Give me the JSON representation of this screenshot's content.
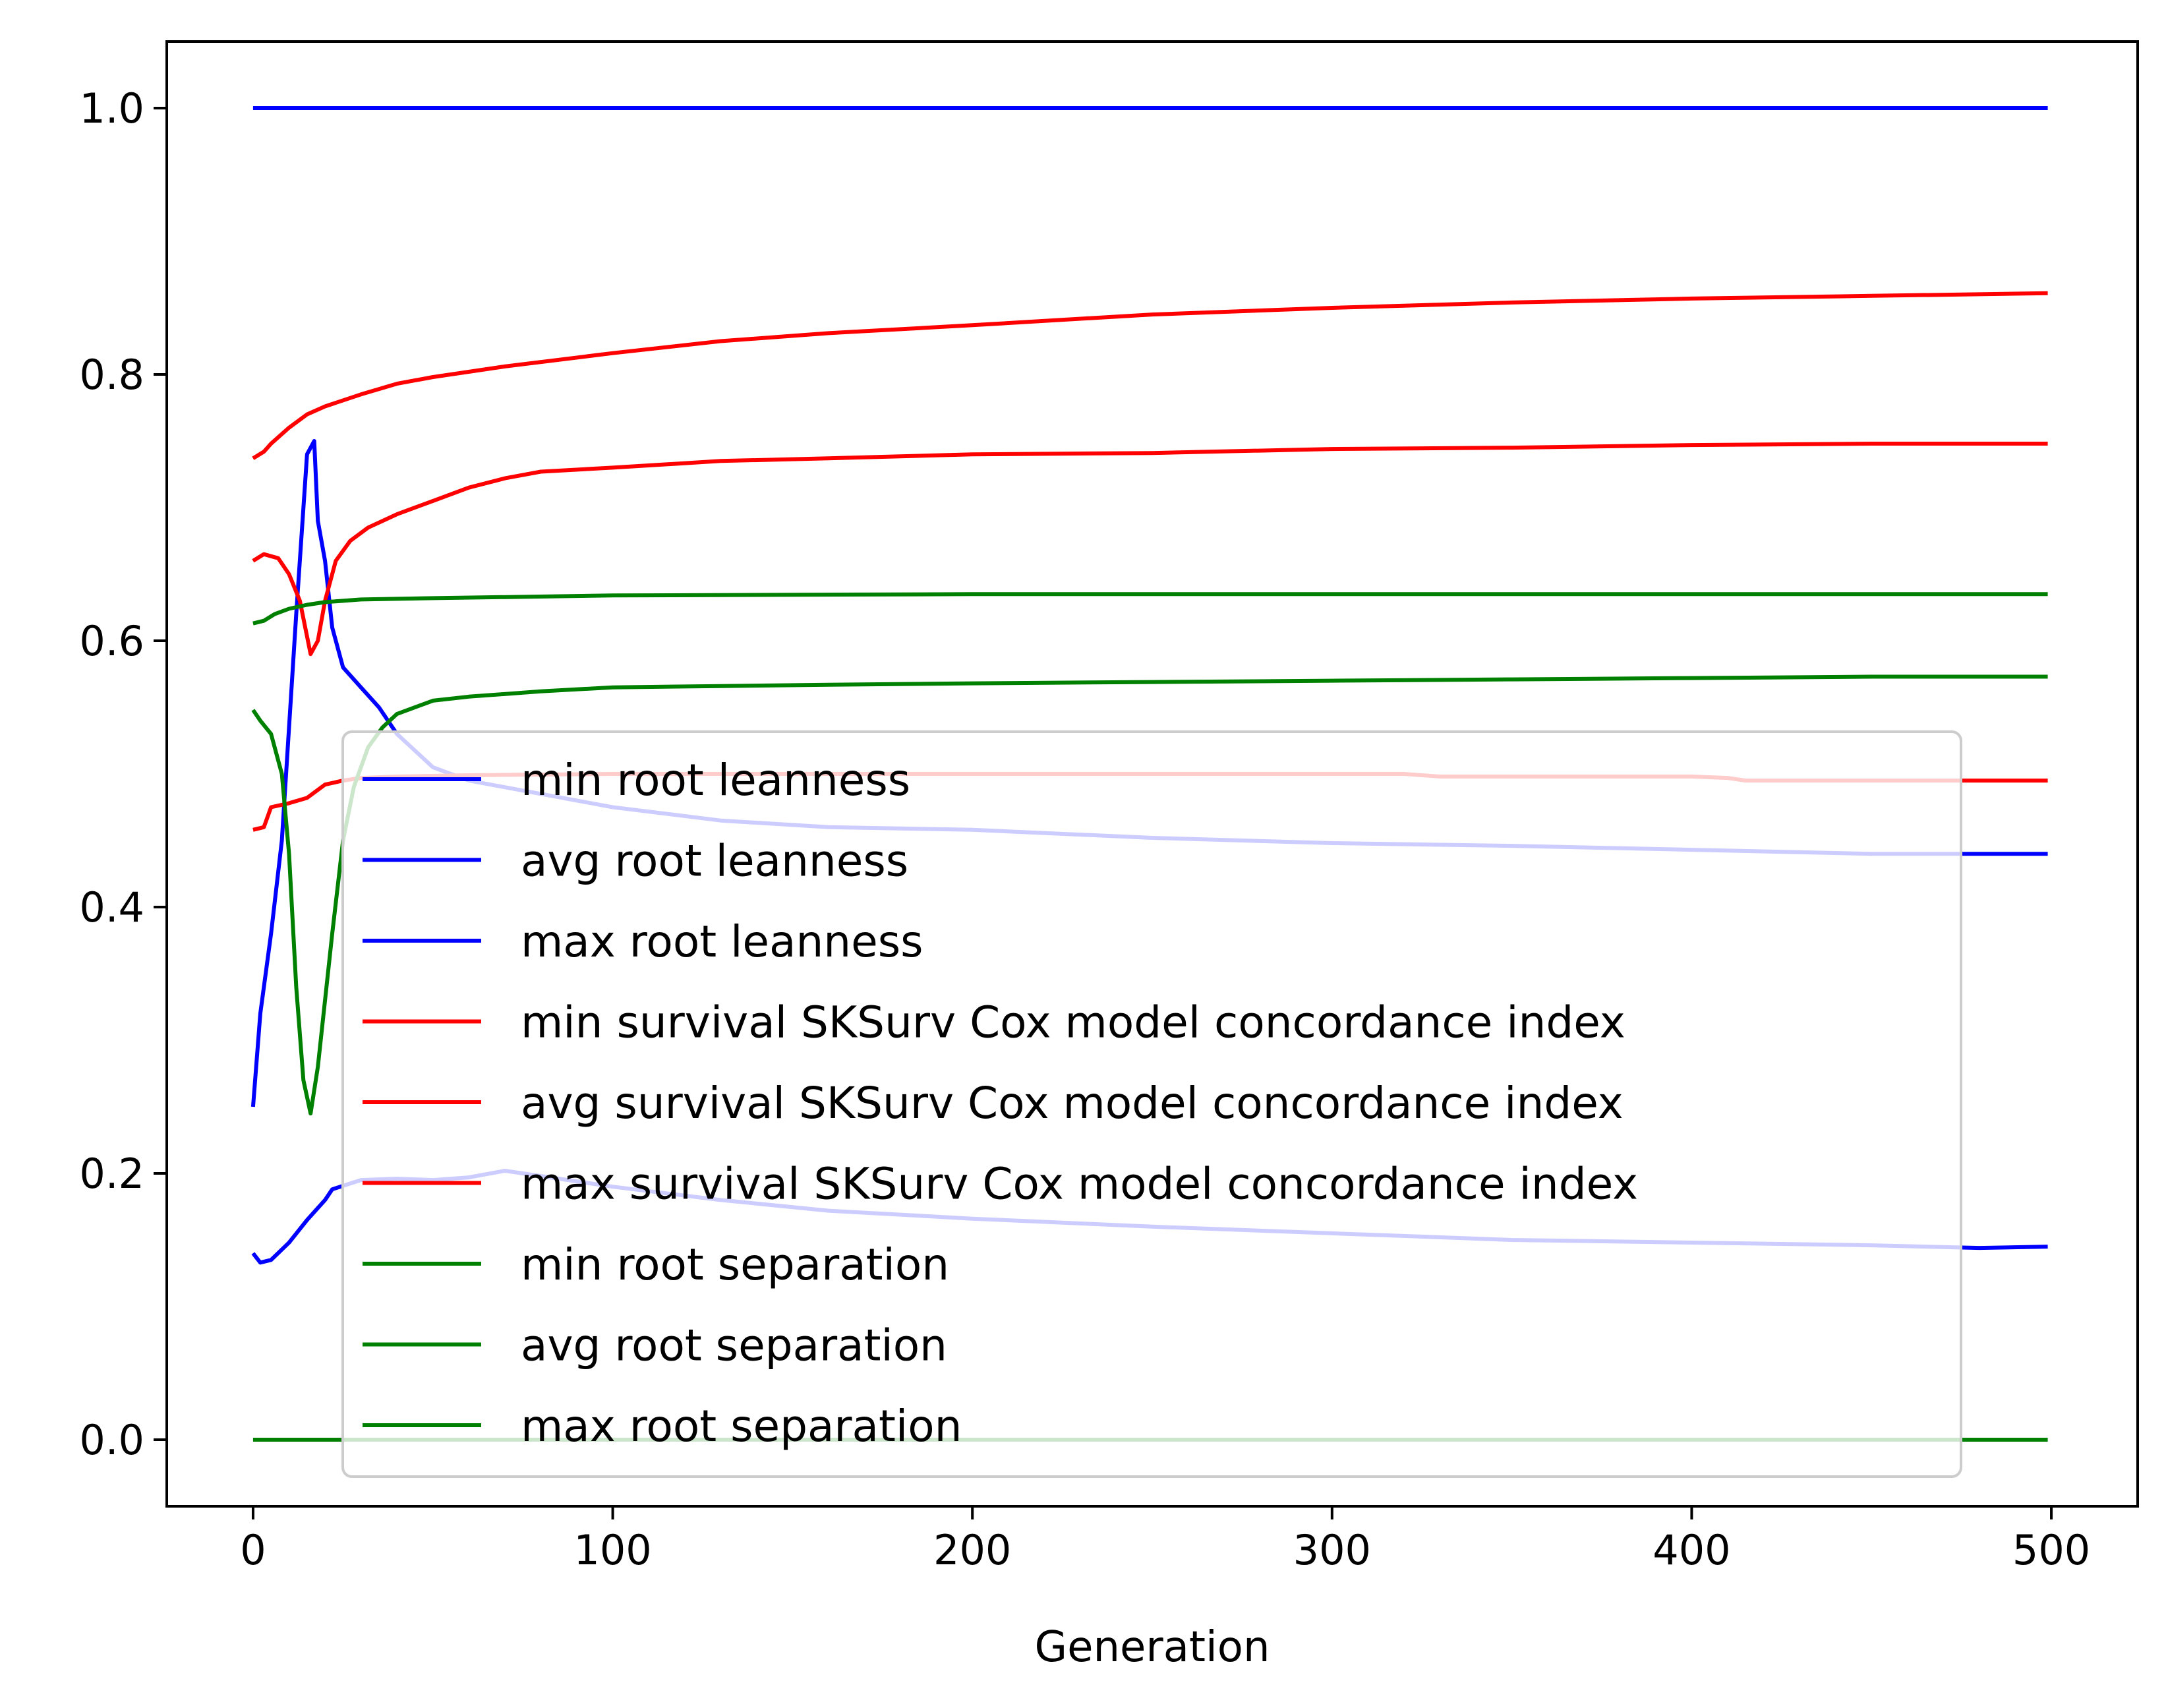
{
  "chart_data": {
    "type": "line",
    "title": "",
    "xlabel": "Generation",
    "ylabel": "",
    "xlim": [
      -24,
      524
    ],
    "ylim": [
      -0.05,
      1.05
    ],
    "xticks": [
      0,
      100,
      200,
      300,
      400,
      500
    ],
    "xtick_labels": [
      "0",
      "100",
      "200",
      "300",
      "400",
      "500"
    ],
    "yticks": [
      0.0,
      0.2,
      0.4,
      0.6,
      0.8,
      1.0
    ],
    "ytick_labels": [
      "0.0",
      "0.2",
      "0.4",
      "0.6",
      "0.8",
      "1.0"
    ],
    "grid": false,
    "legend_position": "center-right",
    "series": [
      {
        "name": "min root leanness",
        "color": "#0000ff",
        "x": [
          0,
          2,
          5,
          10,
          15,
          20,
          22,
          30,
          40,
          50,
          60,
          70,
          80,
          100,
          130,
          160,
          200,
          250,
          300,
          350,
          400,
          450,
          480,
          499
        ],
        "y": [
          0.14,
          0.133,
          0.135,
          0.148,
          0.165,
          0.18,
          0.188,
          0.195,
          0.196,
          0.195,
          0.197,
          0.202,
          0.198,
          0.19,
          0.18,
          0.172,
          0.166,
          0.16,
          0.155,
          0.15,
          0.148,
          0.146,
          0.144,
          0.145
        ]
      },
      {
        "name": "avg root leanness",
        "color": "#0000ff",
        "x": [
          0,
          2,
          5,
          8,
          12,
          15,
          17,
          18,
          20,
          22,
          25,
          30,
          35,
          40,
          50,
          60,
          70,
          80,
          100,
          130,
          160,
          200,
          250,
          300,
          350,
          400,
          450,
          480,
          499
        ],
        "y": [
          0.25,
          0.32,
          0.38,
          0.45,
          0.62,
          0.74,
          0.75,
          0.69,
          0.66,
          0.61,
          0.58,
          0.565,
          0.55,
          0.53,
          0.505,
          0.495,
          0.49,
          0.485,
          0.475,
          0.465,
          0.46,
          0.458,
          0.452,
          0.448,
          0.446,
          0.443,
          0.44,
          0.44,
          0.44
        ]
      },
      {
        "name": "max root leanness",
        "color": "#0000ff",
        "x": [
          0,
          499
        ],
        "y": [
          1.0,
          1.0
        ]
      },
      {
        "name": "min survival SKSurv Cox model concordance index",
        "color": "#ff0000",
        "x": [
          0,
          3,
          5,
          10,
          15,
          20,
          25,
          30,
          40,
          60,
          100,
          200,
          300,
          320,
          330,
          400,
          410,
          415,
          450,
          499
        ],
        "y": [
          0.458,
          0.46,
          0.475,
          0.478,
          0.482,
          0.492,
          0.495,
          0.497,
          0.498,
          0.499,
          0.5,
          0.5,
          0.5,
          0.5,
          0.498,
          0.498,
          0.497,
          0.495,
          0.495,
          0.495
        ]
      },
      {
        "name": "avg survival SKSurv Cox model concordance index",
        "color": "#ff0000",
        "x": [
          0,
          3,
          7,
          10,
          13,
          16,
          18,
          20,
          23,
          27,
          32,
          40,
          50,
          60,
          70,
          80,
          100,
          130,
          160,
          200,
          250,
          300,
          350,
          400,
          450,
          480,
          499
        ],
        "y": [
          0.66,
          0.665,
          0.662,
          0.65,
          0.63,
          0.59,
          0.6,
          0.63,
          0.66,
          0.675,
          0.685,
          0.695,
          0.705,
          0.715,
          0.722,
          0.727,
          0.73,
          0.735,
          0.737,
          0.74,
          0.741,
          0.744,
          0.745,
          0.747,
          0.748,
          0.748,
          0.748
        ]
      },
      {
        "name": "max survival SKSurv Cox model concordance index",
        "color": "#ff0000",
        "x": [
          0,
          3,
          5,
          10,
          15,
          20,
          30,
          40,
          50,
          70,
          100,
          130,
          160,
          200,
          250,
          300,
          350,
          400,
          450,
          499
        ],
        "y": [
          0.737,
          0.742,
          0.748,
          0.76,
          0.77,
          0.776,
          0.785,
          0.793,
          0.798,
          0.806,
          0.816,
          0.825,
          0.831,
          0.837,
          0.845,
          0.85,
          0.854,
          0.857,
          0.859,
          0.861
        ]
      },
      {
        "name": "min root separation",
        "color": "#008000",
        "x": [
          0,
          499
        ],
        "y": [
          0.0,
          0.0
        ]
      },
      {
        "name": "avg root separation",
        "color": "#008000",
        "x": [
          0,
          2,
          5,
          8,
          10,
          12,
          14,
          16,
          18,
          20,
          22,
          25,
          28,
          32,
          36,
          40,
          50,
          60,
          80,
          100,
          130,
          160,
          200,
          250,
          300,
          350,
          400,
          450,
          499
        ],
        "y": [
          0.548,
          0.54,
          0.53,
          0.5,
          0.44,
          0.34,
          0.27,
          0.245,
          0.28,
          0.33,
          0.38,
          0.45,
          0.49,
          0.52,
          0.535,
          0.545,
          0.555,
          0.558,
          0.562,
          0.565,
          0.566,
          0.567,
          0.568,
          0.569,
          0.57,
          0.571,
          0.572,
          0.573,
          0.573
        ]
      },
      {
        "name": "max root separation",
        "color": "#008000",
        "x": [
          0,
          3,
          6,
          10,
          15,
          20,
          30,
          50,
          100,
          200,
          300,
          400,
          499
        ],
        "y": [
          0.613,
          0.615,
          0.62,
          0.624,
          0.627,
          0.629,
          0.631,
          0.632,
          0.634,
          0.635,
          0.635,
          0.635,
          0.635
        ]
      }
    ]
  }
}
